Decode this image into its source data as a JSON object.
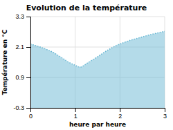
{
  "chart_data": {
    "type": "area",
    "title": "Evolution de la température",
    "x_label": "heure par heure",
    "y_label": "Température en °C",
    "x": [
      0,
      0.15,
      0.3,
      0.5,
      0.7,
      0.85,
      1.0,
      1.1,
      1.15,
      1.3,
      1.5,
      1.7,
      1.9,
      2.0,
      2.2,
      2.5,
      2.7,
      3.0
    ],
    "values": [
      2.22,
      2.14,
      2.05,
      1.9,
      1.68,
      1.5,
      1.38,
      1.3,
      1.32,
      1.5,
      1.72,
      1.95,
      2.15,
      2.22,
      2.35,
      2.5,
      2.6,
      2.72
    ],
    "color": "#6ab8d4",
    "line_style": "dotted",
    "xlim": [
      0,
      3
    ],
    "ylim": [
      -0.3,
      3.3
    ],
    "xticks": [
      0,
      1,
      2,
      3
    ],
    "yticks": [
      -0.3,
      0.9,
      2.1,
      3.3
    ],
    "grid": true
  }
}
